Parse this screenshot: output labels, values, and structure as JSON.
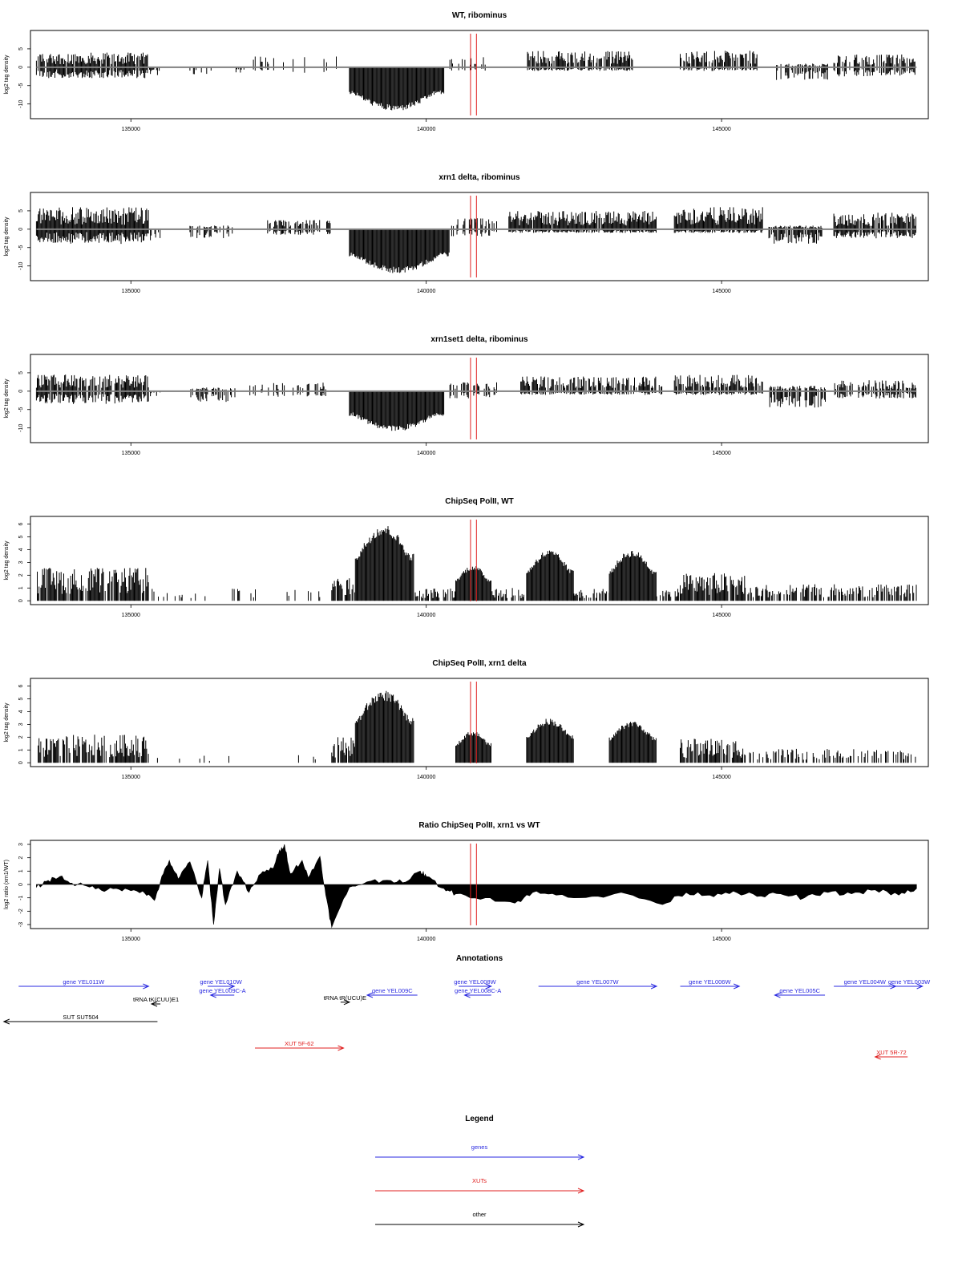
{
  "colors": {
    "genes": "#2a2ae0",
    "xuts": "#e02020",
    "other": "#000000",
    "marker": "#e02020",
    "axis": "#000000",
    "baseline": "#808080"
  },
  "x_axis": {
    "range": [
      133300,
      148500
    ],
    "ticks": [
      135000,
      140000,
      145000
    ],
    "tick_labels": [
      "135000",
      "140000",
      "145000"
    ]
  },
  "markers": [
    140750,
    140850
  ],
  "chart_data": [
    {
      "type": "area",
      "title": "WT, ribominus",
      "ylabel": "log2 tag density",
      "ylim": [
        -14,
        10
      ],
      "yticks": [
        -10,
        -5,
        0,
        5
      ],
      "baseline": 0,
      "regions": [
        {
          "x": [
            133400,
            135300
          ],
          "pos": 4,
          "neg": -3,
          "density": 0.85
        },
        {
          "x": [
            135300,
            135500
          ],
          "pos": 0,
          "neg": -2.5,
          "density": 0.6
        },
        {
          "x": [
            136000,
            136400
          ],
          "pos": 0,
          "neg": -2,
          "density": 0.3
        },
        {
          "x": [
            136600,
            137000
          ],
          "pos": 0,
          "neg": -1.8,
          "density": 0.3
        },
        {
          "x": [
            137000,
            138700
          ],
          "pos": 3,
          "neg": -1.5,
          "density": 0.12
        },
        {
          "x": [
            138700,
            140300
          ],
          "pos": 0,
          "neg": -12,
          "density": 1,
          "shape": "dome"
        },
        {
          "x": [
            140400,
            141100
          ],
          "pos": 3,
          "neg": -1,
          "density": 0.25
        },
        {
          "x": [
            141700,
            143500
          ],
          "pos": 4.5,
          "neg": -1,
          "density": 0.8
        },
        {
          "x": [
            144300,
            145600
          ],
          "pos": 4.5,
          "neg": -1,
          "density": 0.8
        },
        {
          "x": [
            145900,
            146800
          ],
          "pos": 1,
          "neg": -3.5,
          "density": 0.6
        },
        {
          "x": [
            146900,
            148300
          ],
          "pos": 3.5,
          "neg": -2.5,
          "density": 0.65
        }
      ]
    },
    {
      "type": "area",
      "title": "xrn1 delta, ribominus",
      "ylabel": "log2 tag density",
      "ylim": [
        -14,
        10
      ],
      "yticks": [
        -10,
        -5,
        0,
        5
      ],
      "baseline": 0,
      "regions": [
        {
          "x": [
            133400,
            135300
          ],
          "pos": 6,
          "neg": -4,
          "density": 1
        },
        {
          "x": [
            135300,
            135500
          ],
          "pos": 0,
          "neg": -3,
          "density": 0.7
        },
        {
          "x": [
            136000,
            136800
          ],
          "pos": 1,
          "neg": -2.5,
          "density": 0.4
        },
        {
          "x": [
            137300,
            138400
          ],
          "pos": 2.5,
          "neg": -1.5,
          "density": 0.55
        },
        {
          "x": [
            138700,
            140400
          ],
          "pos": 0,
          "neg": -12,
          "density": 1,
          "shape": "dome"
        },
        {
          "x": [
            140400,
            141200
          ],
          "pos": 3,
          "neg": -2,
          "density": 0.6
        },
        {
          "x": [
            141400,
            143900
          ],
          "pos": 5,
          "neg": -1,
          "density": 0.95
        },
        {
          "x": [
            144200,
            145700
          ],
          "pos": 6,
          "neg": -1,
          "density": 1
        },
        {
          "x": [
            145800,
            146700
          ],
          "pos": 1,
          "neg": -4,
          "density": 0.85
        },
        {
          "x": [
            146900,
            148300
          ],
          "pos": 4.5,
          "neg": -2.5,
          "density": 0.9
        }
      ]
    },
    {
      "type": "area",
      "title": "xrn1set1 delta, ribominus",
      "ylabel": "log2 tag density",
      "ylim": [
        -14,
        10
      ],
      "yticks": [
        -10,
        -5,
        0,
        5
      ],
      "baseline": 0,
      "regions": [
        {
          "x": [
            133400,
            135300
          ],
          "pos": 4.5,
          "neg": -3.5,
          "density": 0.85
        },
        {
          "x": [
            135300,
            135500
          ],
          "pos": 0,
          "neg": -1.5,
          "density": 0.4
        },
        {
          "x": [
            136000,
            136800
          ],
          "pos": 1,
          "neg": -3,
          "density": 0.45
        },
        {
          "x": [
            137000,
            138300
          ],
          "pos": 2.5,
          "neg": -1.5,
          "density": 0.35
        },
        {
          "x": [
            138700,
            140300
          ],
          "pos": 0,
          "neg": -11,
          "density": 1,
          "shape": "dome"
        },
        {
          "x": [
            140400,
            141200
          ],
          "pos": 2.5,
          "neg": -2,
          "density": 0.5
        },
        {
          "x": [
            141600,
            144000
          ],
          "pos": 4,
          "neg": -1,
          "density": 0.7
        },
        {
          "x": [
            144200,
            145700
          ],
          "pos": 4.5,
          "neg": -1,
          "density": 0.8
        },
        {
          "x": [
            145800,
            146800
          ],
          "pos": 1.5,
          "neg": -4.5,
          "density": 0.7
        },
        {
          "x": [
            146900,
            148300
          ],
          "pos": 3,
          "neg": -2,
          "density": 0.7
        }
      ]
    },
    {
      "type": "bar",
      "title": "ChipSeq PolII, WT",
      "ylabel": "log2 tag density",
      "ylim": [
        -0.3,
        6.6
      ],
      "yticks": [
        0,
        1,
        2,
        3,
        4,
        5,
        6
      ],
      "baseline": 0,
      "regions": [
        {
          "x": [
            133400,
            135300
          ],
          "pos": 2.6,
          "neg": 0,
          "density": 0.85
        },
        {
          "x": [
            135300,
            138200
          ],
          "pos": 1,
          "neg": 0,
          "density": 0.15
        },
        {
          "x": [
            138400,
            138800
          ],
          "pos": 2,
          "neg": 0,
          "density": 0.9
        },
        {
          "x": [
            138800,
            139800
          ],
          "pos": 6,
          "neg": 0,
          "density": 1,
          "shape": "dome"
        },
        {
          "x": [
            139800,
            140500
          ],
          "pos": 1,
          "neg": 0,
          "density": 0.7
        },
        {
          "x": [
            140500,
            141100
          ],
          "pos": 2.8,
          "neg": 0,
          "density": 1,
          "shape": "dome"
        },
        {
          "x": [
            141100,
            141700
          ],
          "pos": 1,
          "neg": 0,
          "density": 0.6
        },
        {
          "x": [
            141700,
            142500
          ],
          "pos": 4,
          "neg": 0,
          "density": 1,
          "shape": "dome"
        },
        {
          "x": [
            142500,
            143100
          ],
          "pos": 1,
          "neg": 0,
          "density": 0.6
        },
        {
          "x": [
            143100,
            143900
          ],
          "pos": 4,
          "neg": 0,
          "density": 1,
          "shape": "dome"
        },
        {
          "x": [
            143900,
            144300
          ],
          "pos": 1,
          "neg": 0,
          "density": 0.5
        },
        {
          "x": [
            144300,
            145400
          ],
          "pos": 2.2,
          "neg": 0,
          "density": 0.9
        },
        {
          "x": [
            145400,
            148300
          ],
          "pos": 1.3,
          "neg": 0,
          "density": 0.65
        }
      ]
    },
    {
      "type": "bar",
      "title": "ChipSeq PolII, xrn1 delta",
      "ylabel": "log2 tag density",
      "ylim": [
        -0.3,
        6.6
      ],
      "yticks": [
        0,
        1,
        2,
        3,
        4,
        5,
        6
      ],
      "baseline": 0,
      "regions": [
        {
          "x": [
            133400,
            135300
          ],
          "pos": 2.2,
          "neg": 0,
          "density": 0.8
        },
        {
          "x": [
            135300,
            138300
          ],
          "pos": 0.6,
          "neg": 0,
          "density": 0.06
        },
        {
          "x": [
            138400,
            138800
          ],
          "pos": 2,
          "neg": 0,
          "density": 0.85
        },
        {
          "x": [
            138800,
            139800
          ],
          "pos": 5.7,
          "neg": 0,
          "density": 1,
          "shape": "dome"
        },
        {
          "x": [
            140500,
            141100
          ],
          "pos": 2.5,
          "neg": 0,
          "density": 1,
          "shape": "dome"
        },
        {
          "x": [
            141700,
            142500
          ],
          "pos": 3.5,
          "neg": 0,
          "density": 1,
          "shape": "dome"
        },
        {
          "x": [
            143100,
            143900
          ],
          "pos": 3.3,
          "neg": 0,
          "density": 1,
          "shape": "dome"
        },
        {
          "x": [
            144300,
            145400
          ],
          "pos": 1.9,
          "neg": 0,
          "density": 0.85
        },
        {
          "x": [
            145400,
            148300
          ],
          "pos": 1.1,
          "neg": 0,
          "density": 0.45
        }
      ]
    },
    {
      "type": "area",
      "title": "Ratio ChipSeq PolII, xrn1 vs WT",
      "ylabel": "log2 ratio (xrn1/WT)",
      "ylim": [
        -3.3,
        3.3
      ],
      "yticks": [
        -3,
        -2,
        -1,
        0,
        1,
        2,
        3
      ],
      "baseline": 0,
      "profile": {
        "x": [
          133400,
          133600,
          133800,
          134000,
          134300,
          134600,
          134900,
          135200,
          135400,
          135500,
          135650,
          135800,
          136000,
          136200,
          136300,
          136400,
          136500,
          136600,
          136800,
          137000,
          137200,
          137400,
          137500,
          137600,
          137700,
          137900,
          138000,
          138200,
          138300,
          138400,
          138700,
          139000,
          139400,
          139700,
          139900,
          140000,
          140300,
          140500,
          141000,
          141500,
          141800,
          142200,
          142800,
          143400,
          144000,
          144400,
          144800,
          145200,
          145600,
          146000,
          146400,
          146800,
          147200,
          147600,
          148000,
          148300
        ],
        "y": [
          -0.2,
          0.3,
          0.6,
          0.1,
          -0.2,
          -0.4,
          -0.3,
          -0.5,
          -1.2,
          0.2,
          1.8,
          0.4,
          1.7,
          -1.0,
          1.8,
          -3.0,
          1.2,
          -1.5,
          1.0,
          -0.6,
          0.8,
          1.2,
          2.3,
          3.0,
          0.8,
          1.8,
          0.5,
          2.1,
          -0.8,
          -3.2,
          -0.2,
          0.2,
          0.3,
          0.3,
          1.0,
          0.6,
          -0.3,
          -0.7,
          -1.0,
          -1.4,
          -0.6,
          -0.8,
          -0.9,
          -0.7,
          -1.5,
          -0.6,
          -0.8,
          -0.5,
          -0.9,
          -0.7,
          -1.0,
          -0.6,
          -0.7,
          -0.4,
          -0.8,
          -0.3
        ]
      }
    }
  ],
  "annotations": {
    "title": "Annotations",
    "features": [
      {
        "label": "gene YEL011W",
        "type": "genes",
        "x1": 133100,
        "x2": 135300,
        "dir": "right",
        "row": 0
      },
      {
        "label": "gene YEL010W",
        "type": "genes",
        "x1": 136300,
        "x2": 136750,
        "dir": "right",
        "row": 0
      },
      {
        "label": "gene YEL009C-A",
        "type": "genes",
        "x1": 136350,
        "x2": 136750,
        "dir": "left",
        "row": 1
      },
      {
        "label": "gene YEL009C",
        "type": "genes",
        "x1": 139000,
        "x2": 139850,
        "dir": "left",
        "row": 1
      },
      {
        "label": "gene YEL008W",
        "type": "genes",
        "x1": 140550,
        "x2": 141100,
        "dir": "right",
        "row": 0
      },
      {
        "label": "gene YEL008C-A",
        "type": "genes",
        "x1": 140650,
        "x2": 141100,
        "dir": "left",
        "row": 1
      },
      {
        "label": "gene YEL007W",
        "type": "genes",
        "x1": 141900,
        "x2": 143900,
        "dir": "right",
        "row": 0
      },
      {
        "label": "gene YEL006W",
        "type": "genes",
        "x1": 144300,
        "x2": 145300,
        "dir": "right",
        "row": 0
      },
      {
        "label": "gene YEL005C",
        "type": "genes",
        "x1": 145900,
        "x2": 146750,
        "dir": "left",
        "row": 1
      },
      {
        "label": "gene YEL004W",
        "type": "genes",
        "x1": 146900,
        "x2": 147950,
        "dir": "right",
        "row": 0
      },
      {
        "label": "gene YEL003W",
        "type": "genes",
        "x1": 147950,
        "x2": 148400,
        "dir": "right",
        "row": 0
      },
      {
        "label": "tRNA tK(CUU)E1",
        "type": "other",
        "x1": 135350,
        "x2": 135500,
        "dir": "left",
        "row": 2
      },
      {
        "label": "tRNA tR(UCU)E",
        "type": "other",
        "x1": 138550,
        "x2": 138700,
        "dir": "right",
        "row": 1.8
      },
      {
        "label": "SUT SUT504",
        "type": "other",
        "x1": 132850,
        "x2": 135450,
        "dir": "left",
        "row": 4
      },
      {
        "label": "XUT 5F-62",
        "type": "xuts",
        "x1": 137100,
        "x2": 138600,
        "dir": "right",
        "row": 7
      },
      {
        "label": "XUT 5R-72",
        "type": "xuts",
        "x1": 147600,
        "x2": 148150,
        "dir": "left",
        "row": 8
      }
    ]
  },
  "legend": {
    "title": "Legend",
    "items": [
      {
        "label": "genes",
        "type": "genes"
      },
      {
        "label": "XUTs",
        "type": "xuts"
      },
      {
        "label": "other",
        "type": "other"
      }
    ]
  }
}
